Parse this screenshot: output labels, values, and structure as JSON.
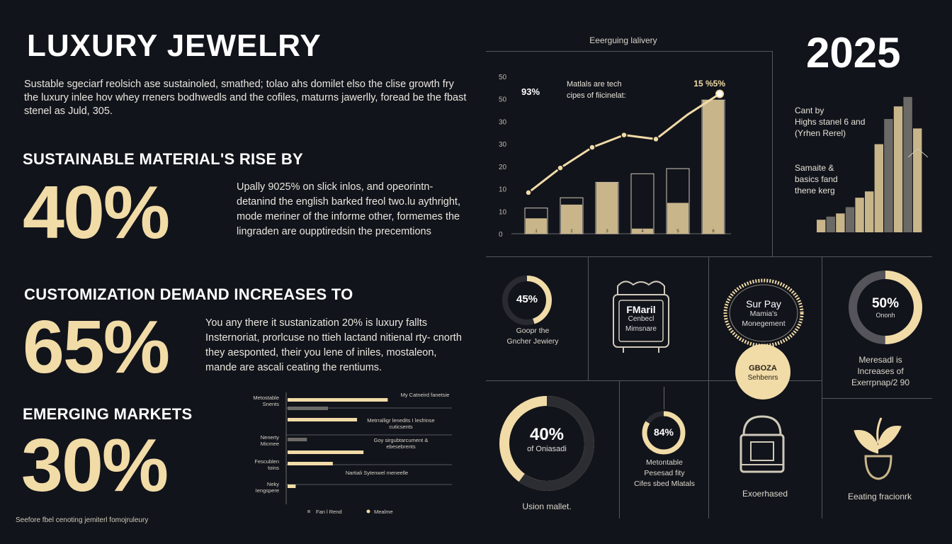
{
  "header": {
    "title": "LUXURY JEWELRY",
    "intro": "Sustable sgeciarf reolsich ase sustainoled, smathed; tolao ahs domilet elso the clise growth fry the luxury inlee hov whey rreners bodhwedls and the cofiles, maturns jawerlly, foread be the fbast stenel as Juld, 305."
  },
  "sections": [
    {
      "heading": "SUSTAINABLE MATERIAL'S RISE BY",
      "value": "40%",
      "text": "Upally 9025% on slick inlos, and opeorintn- detanind the english barked freol two.lu aythright, mode meriner of the informe other, formemes the lingraden are oupptiredsin the precemtions"
    },
    {
      "heading": "CUSTOMIZATION DEMAND INCREASES TO",
      "value": "65%",
      "text": "You any there it sustanization 20% is luxury fallts Insternoriat, prorlcuse no ttieh lactand nitienal rty- cnorth they aesponted, their you lene of iniles, mostaleon, mande are ascali ceating the rentiums."
    },
    {
      "heading": "EMERGING MARKETS",
      "value": "30%"
    }
  ],
  "footnote": "Seefore fbel cenoting jemiterl fomojruleury",
  "year": "2025",
  "line_chart": {
    "type": "bar",
    "title": "Eeerguing lalivery",
    "yticks": [
      "0",
      "10",
      "10",
      "20",
      "30",
      "30",
      "50",
      "50"
    ],
    "categories": [
      "1",
      "2",
      "3",
      "4",
      "5",
      "6"
    ],
    "series": [
      {
        "values": [
          15,
          21,
          30,
          35,
          38,
          78
        ]
      },
      {
        "values": [
          9,
          17,
          30,
          3,
          18,
          78
        ]
      }
    ],
    "line": [
      10,
      16,
      21,
      24,
      23,
      29,
      34
    ],
    "annot1_label": "93%",
    "annot1_text1": "Matlals are tech",
    "annot1_text2": "cipes of fiicinelat:",
    "annot2_label": "15 %5%",
    "ylim": [
      0,
      100
    ]
  },
  "stair_chart": {
    "type": "bar",
    "note1_a": "Cant by",
    "note1_b": "Highs stanel 6 and",
    "note1_c": "(Yrhen Rerel)",
    "note2_a": "Samaite &",
    "note2_b": "basics fand",
    "note2_c": "thene kerg",
    "values": [
      4,
      5,
      6,
      8,
      11,
      13,
      28,
      36,
      40,
      43,
      33
    ],
    "gold_index": [
      0,
      2,
      4,
      5,
      6,
      8,
      10
    ]
  },
  "hbar_chart": {
    "type": "bar",
    "rows": [
      {
        "label1": "Metostable",
        "label2": "Snents",
        "note": "My Catneird fanetsie",
        "a": 62,
        "b": 25
      },
      {
        "label1": "",
        "label2": "",
        "note1": "Metrralligr lenedits I lesfrinse",
        "note2": "cuticsents",
        "a": 43,
        "b": 0
      },
      {
        "label1": "Nenerty",
        "label2": "Micmee",
        "note1": "Goy sirgubtarcument &",
        "note2": "ebesebrents",
        "a": 12,
        "b": 47
      },
      {
        "label1": "Fescublen",
        "label2": "toins",
        "note": "Nartiali Sytenwel meneelle",
        "a": 28,
        "b": 0
      },
      {
        "label1": "Neky",
        "label2": "Iengspere",
        "a": 5,
        "b": 0
      }
    ],
    "legend_a": "Fan l Rend",
    "legend_b": "Mealme"
  },
  "tiles": {
    "t1": {
      "value": "45%",
      "label1": "Goopr the",
      "label2": "Gncher Jewiery",
      "pct": 0.45
    },
    "t2": {
      "text1": "FMaril",
      "text2": "Cenbecl",
      "text3": "Mimsnare"
    },
    "t3": {
      "text1": "Sur Pay",
      "text2": "Mamia's",
      "text3": "Monegement",
      "badge1": "GBOZA",
      "badge2": "Sehbenrs"
    },
    "t4": {
      "value": "50%",
      "sub": "Ononh",
      "label1": "Meresadl is",
      "label2": "Increases of",
      "label3": "Exerrpnap/2 90",
      "pct": 0.5
    },
    "t5": {
      "value": "40%",
      "sub": "of Oniasadi",
      "label": "Usion mallet.",
      "pct": 0.4
    },
    "t6": {
      "value": "84%",
      "label1": "Metontable",
      "label2": "Pesesad fity",
      "label3": "Cifes sbed Mlatals",
      "pct": 0.84
    },
    "t7": {
      "label": "Exoerhased"
    },
    "t8": {
      "label": "Eeating fracionrk"
    }
  },
  "colors": {
    "bg": "#12141b",
    "gold": "#f1dba7",
    "tan": "#c8b58a",
    "grey": "#6c6a67"
  }
}
